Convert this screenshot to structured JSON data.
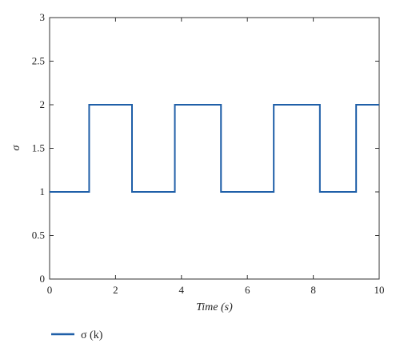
{
  "chart_data": {
    "type": "line",
    "step": "post",
    "xlabel": "Time (s)",
    "ylabel": "σ",
    "xlim": [
      0,
      10
    ],
    "ylim": [
      0,
      3
    ],
    "xticks": [
      0,
      2,
      4,
      6,
      8,
      10
    ],
    "xtick_labels": [
      "0",
      "2",
      "4",
      "6",
      "8",
      "10"
    ],
    "yticks": [
      0,
      0.5,
      1,
      1.5,
      2,
      2.5,
      3
    ],
    "ytick_labels": [
      "0",
      "0.5",
      "1",
      "1.5",
      "2",
      "2.5",
      "3"
    ],
    "grid": false,
    "legend_position": "bottom-left",
    "series": [
      {
        "name": "σ (k)",
        "color": "#1f5fa8",
        "x": [
          0,
          1.2,
          2.5,
          3.8,
          5.2,
          6.8,
          8.2,
          9.3,
          10
        ],
        "y": [
          1,
          2,
          1,
          2,
          1,
          2,
          1,
          2,
          2
        ]
      }
    ]
  }
}
